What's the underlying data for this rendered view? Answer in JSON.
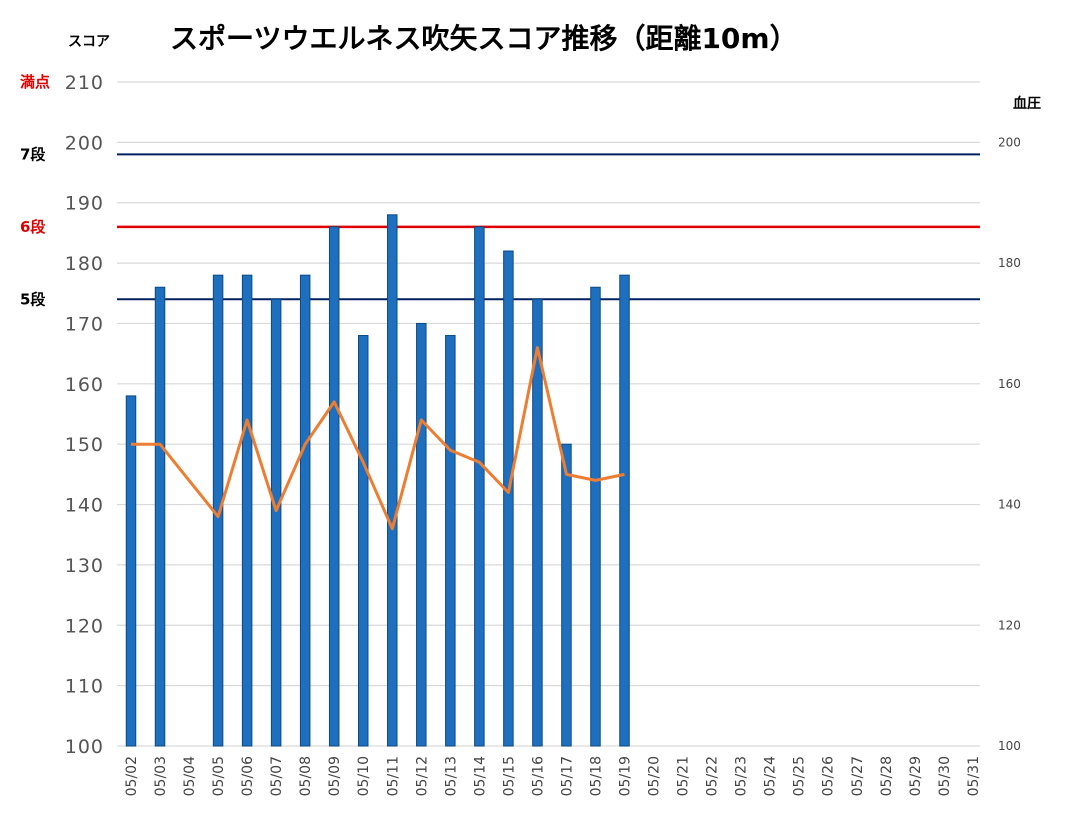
{
  "chart_data": {
    "type": "bar",
    "title": "スポーツウエルネス吹矢スコア推移（距離10m）",
    "ylabel": "スコア",
    "y2label": "血圧",
    "ylim": [
      100,
      210
    ],
    "y2lim": [
      100,
      210
    ],
    "yticks": [
      100,
      110,
      120,
      130,
      140,
      150,
      160,
      170,
      180,
      190,
      200,
      210
    ],
    "y2ticks": [
      100,
      120,
      140,
      160,
      180,
      200
    ],
    "grid": true,
    "categories": [
      "05/02",
      "05/03",
      "05/04",
      "05/05",
      "05/06",
      "05/07",
      "05/08",
      "05/09",
      "05/10",
      "05/11",
      "05/12",
      "05/13",
      "05/14",
      "05/15",
      "05/16",
      "05/17",
      "05/18",
      "05/19",
      "05/20",
      "05/21",
      "05/22",
      "05/23",
      "05/24",
      "05/25",
      "05/26",
      "05/27",
      "05/28",
      "05/29",
      "05/30",
      "05/31"
    ],
    "series": [
      {
        "type": "bar",
        "axis": "left",
        "color": "#1f6fbf",
        "values": [
          158,
          176,
          null,
          178,
          178,
          174,
          178,
          186,
          168,
          188,
          170,
          168,
          186,
          182,
          174,
          150,
          176,
          178,
          null,
          null,
          null,
          null,
          null,
          null,
          null,
          null,
          null,
          null,
          null,
          null
        ]
      },
      {
        "type": "line",
        "axis": "right",
        "color": "#ed7d31",
        "values": [
          150,
          150,
          null,
          138,
          154,
          139,
          150,
          157,
          147,
          136,
          154,
          149,
          147,
          142,
          166,
          145,
          144,
          145,
          null,
          null,
          null,
          null,
          null,
          null,
          null,
          null,
          null,
          null,
          null,
          null
        ]
      }
    ],
    "reference_lines": [
      {
        "label": "満点",
        "value": 210,
        "label_color": "#e00000",
        "line_color": "#d9d9d9"
      },
      {
        "label": "7段",
        "value": 198,
        "label_color": "#000000",
        "line_color": "#002060"
      },
      {
        "label": "6段",
        "value": 186,
        "label_color": "#e00000",
        "line_color": "#e00000"
      },
      {
        "label": "5段",
        "value": 174,
        "label_color": "#000000",
        "line_color": "#002060"
      }
    ]
  }
}
